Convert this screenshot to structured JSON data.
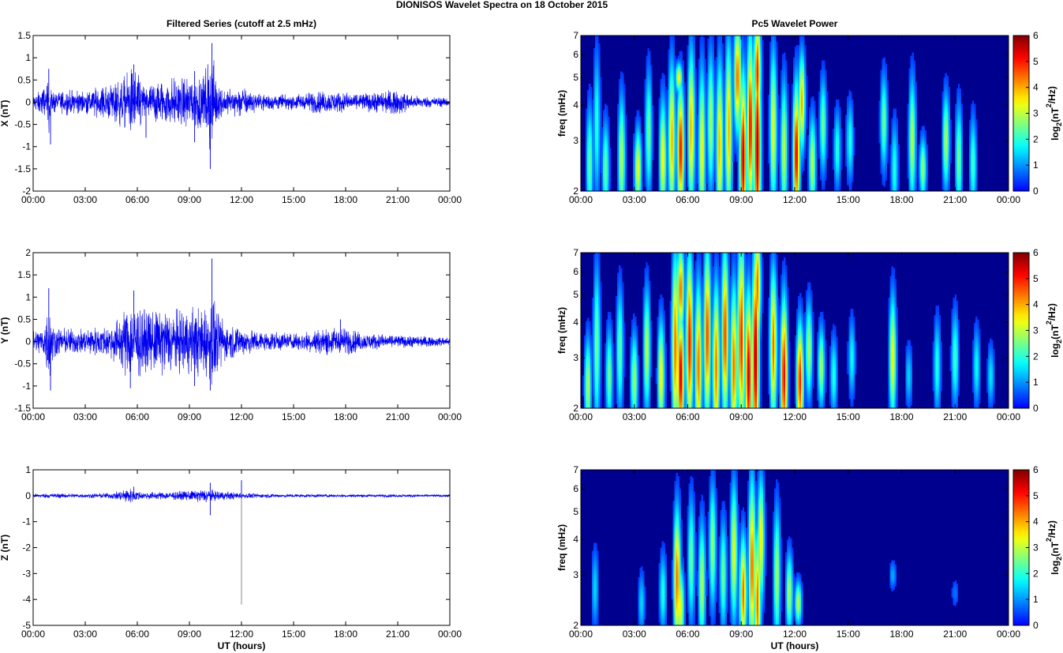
{
  "figure_title": "DIONISOS Wavelet Spectra on 18 October   2015",
  "colors": {
    "series_line": "#0000ee",
    "spike_line": "#8a8a9a",
    "spectrum_background": "#00008f"
  },
  "chart_data": [
    {
      "type": "line",
      "title": "Filtered Series (cutoff at 2.5 mHz)",
      "ylabel": "X (nT)",
      "xlabel": "",
      "ylim": [
        -2,
        1.5
      ],
      "xlim": [
        0,
        24
      ],
      "yticks": [
        "1.5",
        "1",
        "0.5",
        "0",
        "-0.5",
        "-1",
        "-1.5",
        "-2"
      ],
      "xticks": [
        "00:00",
        "03:00",
        "06:00",
        "09:00",
        "12:00",
        "15:00",
        "18:00",
        "21:00",
        "00:00"
      ],
      "envelope": [
        [
          0,
          0.18
        ],
        [
          0.8,
          0.4
        ],
        [
          0.9,
          0.75
        ],
        [
          1.1,
          0.25
        ],
        [
          2,
          0.3
        ],
        [
          3,
          0.25
        ],
        [
          3.5,
          0.35
        ],
        [
          4.5,
          0.45
        ],
        [
          5.2,
          0.6
        ],
        [
          5.8,
          0.85
        ],
        [
          6.5,
          0.35
        ],
        [
          7,
          0.5
        ],
        [
          7.8,
          0.55
        ],
        [
          8.5,
          0.55
        ],
        [
          9.3,
          0.7
        ],
        [
          9.8,
          0.6
        ],
        [
          10.1,
          1.0
        ],
        [
          10.3,
          1.3
        ],
        [
          10.6,
          0.5
        ],
        [
          11,
          0.3
        ],
        [
          12,
          0.35
        ],
        [
          13,
          0.2
        ],
        [
          15,
          0.18
        ],
        [
          16,
          0.25
        ],
        [
          17.5,
          0.25
        ],
        [
          18.5,
          0.2
        ],
        [
          20,
          0.25
        ],
        [
          21,
          0.3
        ],
        [
          22,
          0.15
        ],
        [
          24,
          0.1
        ]
      ],
      "peaks": [
        [
          0.9,
          0.75
        ],
        [
          1.0,
          -0.95
        ],
        [
          5.8,
          0.85
        ],
        [
          6.5,
          -0.8
        ],
        [
          10.3,
          1.33
        ],
        [
          10.2,
          -1.5
        ],
        [
          9.3,
          0.7
        ],
        [
          9.3,
          -0.9
        ]
      ]
    },
    {
      "type": "line",
      "title": "",
      "ylabel": "Y (nT)",
      "xlabel": "",
      "ylim": [
        -1.5,
        2
      ],
      "xlim": [
        0,
        24
      ],
      "yticks": [
        "2",
        "1.5",
        "1",
        "0.5",
        "0",
        "-0.5",
        "-1",
        "-1.5"
      ],
      "xticks": [
        "00:00",
        "03:00",
        "06:00",
        "09:00",
        "12:00",
        "15:00",
        "18:00",
        "21:00",
        "00:00"
      ],
      "envelope": [
        [
          0,
          0.25
        ],
        [
          0.6,
          0.35
        ],
        [
          0.9,
          1.0
        ],
        [
          1.2,
          0.35
        ],
        [
          2,
          0.3
        ],
        [
          3,
          0.3
        ],
        [
          4,
          0.35
        ],
        [
          4.8,
          0.5
        ],
        [
          5.3,
          0.8
        ],
        [
          5.8,
          1.0
        ],
        [
          6.5,
          0.7
        ],
        [
          7.5,
          0.8
        ],
        [
          8.5,
          0.75
        ],
        [
          9.5,
          0.8
        ],
        [
          10,
          0.9
        ],
        [
          10.3,
          1.2
        ],
        [
          10.6,
          0.7
        ],
        [
          11.2,
          0.4
        ],
        [
          12,
          0.35
        ],
        [
          13,
          0.25
        ],
        [
          15,
          0.2
        ],
        [
          16.5,
          0.3
        ],
        [
          17.8,
          0.35
        ],
        [
          19,
          0.2
        ],
        [
          21,
          0.15
        ],
        [
          24,
          0.1
        ]
      ],
      "peaks": [
        [
          0.9,
          1.2
        ],
        [
          1.0,
          -1.1
        ],
        [
          5.8,
          1.15
        ],
        [
          5.6,
          -1.05
        ],
        [
          10.3,
          1.87
        ],
        [
          10.2,
          -1.1
        ],
        [
          17.7,
          0.5
        ],
        [
          9.3,
          -1.0
        ]
      ]
    },
    {
      "type": "line",
      "title": "",
      "ylabel": "Z (nT)",
      "xlabel": "UT (hours)",
      "ylim": [
        -5,
        1
      ],
      "xlim": [
        0,
        24
      ],
      "yticks": [
        "1",
        "0",
        "-1",
        "-2",
        "-3",
        "-4",
        "-5"
      ],
      "xticks": [
        "00:00",
        "03:00",
        "06:00",
        "09:00",
        "12:00",
        "15:00",
        "18:00",
        "21:00",
        "00:00"
      ],
      "envelope": [
        [
          0,
          0.07
        ],
        [
          1,
          0.1
        ],
        [
          3,
          0.08
        ],
        [
          4.5,
          0.12
        ],
        [
          5.5,
          0.3
        ],
        [
          6.3,
          0.15
        ],
        [
          7.5,
          0.15
        ],
        [
          9,
          0.2
        ],
        [
          10,
          0.3
        ],
        [
          10.5,
          0.2
        ],
        [
          11.5,
          0.15
        ],
        [
          13,
          0.08
        ],
        [
          16,
          0.07
        ],
        [
          24,
          0.05
        ]
      ],
      "peaks": [
        [
          5.8,
          0.35
        ],
        [
          10.2,
          0.5
        ],
        [
          10.2,
          -0.75
        ],
        [
          12.0,
          0.6
        ]
      ],
      "spike": {
        "x": 12.0,
        "y": -4.2
      }
    },
    {
      "type": "heatmap",
      "title": "Pc5 Wavelet Power",
      "ylabel": "freq (mHz)",
      "xlabel": "",
      "scale": "log",
      "ylim": [
        2,
        7
      ],
      "xlim": [
        0,
        24
      ],
      "yticks": [
        "2",
        "3",
        "4",
        "5",
        "6",
        "7"
      ],
      "xticks": [
        "00:00",
        "03:00",
        "06:00",
        "09:00",
        "12:00",
        "15:00",
        "18:00",
        "21:00",
        "00:00"
      ],
      "colorbar": {
        "label_main": "log",
        "label_sub": "2",
        "label_paren": "(nT",
        "label_sup": "2",
        "label_end": "/Hz)",
        "range": [
          0,
          6
        ],
        "ticks": [
          "6",
          "5",
          "4",
          "3",
          "2",
          "1",
          "0"
        ]
      },
      "blobs": [
        [
          0.5,
          2.5,
          2.9,
          2.5
        ],
        [
          0.9,
          3.4,
          3.4,
          2.0
        ],
        [
          1.4,
          2.4,
          2.6,
          2.5
        ],
        [
          2.3,
          2.6,
          3.0,
          3.0
        ],
        [
          3.2,
          2.4,
          2.4,
          3.5
        ],
        [
          3.8,
          3.2,
          3.0,
          2.5
        ],
        [
          4.6,
          2.6,
          2.9,
          3.5
        ],
        [
          5.1,
          3.0,
          3.4,
          4.0
        ],
        [
          5.6,
          2.8,
          3.0,
          5.2
        ],
        [
          5.5,
          5.0,
          1.8,
          3.5
        ],
        [
          6.2,
          3.3,
          3.5,
          4.0
        ],
        [
          6.8,
          2.8,
          3.6,
          3.5
        ],
        [
          7.3,
          3.5,
          3.2,
          3.0
        ],
        [
          7.8,
          2.9,
          3.6,
          4.0
        ],
        [
          8.3,
          3.3,
          3.8,
          4.0
        ],
        [
          8.8,
          5.0,
          2.8,
          4.5
        ],
        [
          9.1,
          2.6,
          3.6,
          5.6
        ],
        [
          9.5,
          3.4,
          3.8,
          5.2
        ],
        [
          9.9,
          2.8,
          4.6,
          5.8
        ],
        [
          9.9,
          5.2,
          2.8,
          5.0
        ],
        [
          10.8,
          3.3,
          3.5,
          3.5
        ],
        [
          11.4,
          2.8,
          3.2,
          3.0
        ],
        [
          12.1,
          2.7,
          3.2,
          5.3
        ],
        [
          12.4,
          4.1,
          2.6,
          4.0
        ],
        [
          13.0,
          2.5,
          2.6,
          3.0
        ],
        [
          13.6,
          3.4,
          2.6,
          2.5
        ],
        [
          14.4,
          2.8,
          2.4,
          2.0
        ],
        [
          15.1,
          3.0,
          2.4,
          2.0
        ],
        [
          17.0,
          3.5,
          2.6,
          2.5
        ],
        [
          17.6,
          2.4,
          2.6,
          2.0
        ],
        [
          18.6,
          3.0,
          3.0,
          3.0
        ],
        [
          19.2,
          2.4,
          2.2,
          2.8
        ],
        [
          20.5,
          3.0,
          2.6,
          3.0
        ],
        [
          21.2,
          2.6,
          2.8,
          2.5
        ],
        [
          22.0,
          2.5,
          2.6,
          2.2
        ]
      ]
    },
    {
      "type": "heatmap",
      "title": "",
      "ylabel": "freq (mHz)",
      "xlabel": "",
      "scale": "log",
      "ylim": [
        2,
        7
      ],
      "xlim": [
        0,
        24
      ],
      "yticks": [
        "2",
        "3",
        "4",
        "5",
        "6",
        "7"
      ],
      "xticks": [
        "00:00",
        "03:00",
        "06:00",
        "09:00",
        "12:00",
        "15:00",
        "18:00",
        "21:00",
        "00:00"
      ],
      "colorbar": {
        "label_main": "log",
        "label_sub": "2",
        "label_paren": "(nT",
        "label_sup": "2",
        "label_end": "/Hz)",
        "range": [
          0,
          6
        ],
        "ticks": [
          "6",
          "5",
          "4",
          "3",
          "2",
          "1",
          "0"
        ]
      },
      "blobs": [
        [
          0.4,
          2.4,
          2.6,
          3.0
        ],
        [
          0.9,
          3.3,
          3.6,
          2.6
        ],
        [
          1.6,
          2.6,
          2.6,
          2.5
        ],
        [
          2.2,
          3.2,
          3.0,
          2.5
        ],
        [
          3.0,
          2.5,
          2.6,
          2.8
        ],
        [
          3.7,
          3.2,
          3.0,
          3.0
        ],
        [
          4.5,
          2.6,
          2.8,
          3.5
        ],
        [
          5.3,
          3.3,
          4.0,
          4.5
        ],
        [
          5.6,
          2.6,
          3.0,
          5.6
        ],
        [
          5.6,
          5.2,
          2.5,
          4.5
        ],
        [
          6.1,
          3.4,
          3.8,
          5.2
        ],
        [
          6.6,
          2.8,
          3.6,
          4.5
        ],
        [
          7.1,
          3.6,
          3.8,
          4.8
        ],
        [
          7.6,
          2.8,
          3.6,
          4.5
        ],
        [
          8.1,
          3.6,
          3.8,
          4.8
        ],
        [
          8.6,
          2.8,
          3.6,
          4.5
        ],
        [
          9.0,
          3.5,
          4.2,
          5.0
        ],
        [
          9.4,
          2.6,
          3.6,
          5.6
        ],
        [
          9.8,
          3.0,
          4.6,
          5.8
        ],
        [
          9.9,
          5.4,
          2.8,
          4.5
        ],
        [
          10.8,
          3.3,
          3.4,
          4.5
        ],
        [
          11.4,
          2.6,
          3.4,
          5.2
        ],
        [
          12.3,
          2.5,
          2.8,
          5.0
        ],
        [
          12.8,
          3.2,
          2.6,
          3.0
        ],
        [
          13.5,
          2.8,
          2.4,
          2.8
        ],
        [
          14.2,
          2.6,
          2.4,
          2.0
        ],
        [
          15.2,
          3.0,
          2.4,
          1.8
        ],
        [
          17.5,
          3.0,
          3.0,
          3.5
        ],
        [
          18.4,
          2.6,
          2.2,
          1.5
        ],
        [
          20.0,
          2.8,
          2.6,
          2.0
        ],
        [
          21.0,
          3.0,
          2.6,
          2.2
        ],
        [
          22.2,
          2.8,
          2.4,
          1.8
        ],
        [
          23.0,
          2.6,
          2.2,
          1.6
        ]
      ]
    },
    {
      "type": "heatmap",
      "title": "",
      "ylabel": "freq (mHz)",
      "xlabel": "UT (hours)",
      "scale": "log",
      "ylim": [
        2,
        7
      ],
      "xlim": [
        0,
        24
      ],
      "yticks": [
        "2",
        "3",
        "4",
        "5",
        "6",
        "7"
      ],
      "xticks": [
        "00:00",
        "03:00",
        "06:00",
        "09:00",
        "12:00",
        "15:00",
        "18:00",
        "21:00",
        "00:00"
      ],
      "colorbar": {
        "label_main": "log",
        "label_sub": "2",
        "label_paren": "(nT",
        "label_sup": "2",
        "label_end": "/Hz)",
        "range": [
          0,
          6
        ],
        "ticks": [
          "6",
          "5",
          "4",
          "3",
          "2",
          "1",
          "0"
        ]
      },
      "blobs": [
        [
          0.8,
          2.7,
          2.4,
          1.5
        ],
        [
          3.4,
          2.4,
          2.2,
          1.5
        ],
        [
          4.6,
          2.6,
          2.4,
          2.0
        ],
        [
          5.4,
          2.9,
          3.2,
          4.5
        ],
        [
          5.6,
          2.3,
          2.4,
          3.5
        ],
        [
          6.2,
          3.4,
          3.0,
          2.5
        ],
        [
          6.8,
          2.8,
          3.0,
          3.0
        ],
        [
          7.4,
          3.8,
          3.0,
          2.8
        ],
        [
          8.0,
          3.0,
          2.8,
          2.5
        ],
        [
          8.6,
          3.6,
          3.2,
          3.5
        ],
        [
          9.1,
          2.6,
          2.8,
          4.5
        ],
        [
          9.6,
          3.2,
          3.8,
          4.5
        ],
        [
          9.9,
          2.4,
          3.2,
          4.5
        ],
        [
          10.1,
          4.0,
          3.0,
          3.5
        ],
        [
          11.0,
          3.0,
          3.2,
          2.8
        ],
        [
          11.7,
          2.6,
          2.4,
          3.0
        ],
        [
          12.2,
          2.4,
          2.0,
          3.0
        ],
        [
          17.5,
          3.0,
          1.8,
          1.2
        ],
        [
          21.0,
          2.6,
          1.8,
          0.8
        ]
      ]
    }
  ]
}
